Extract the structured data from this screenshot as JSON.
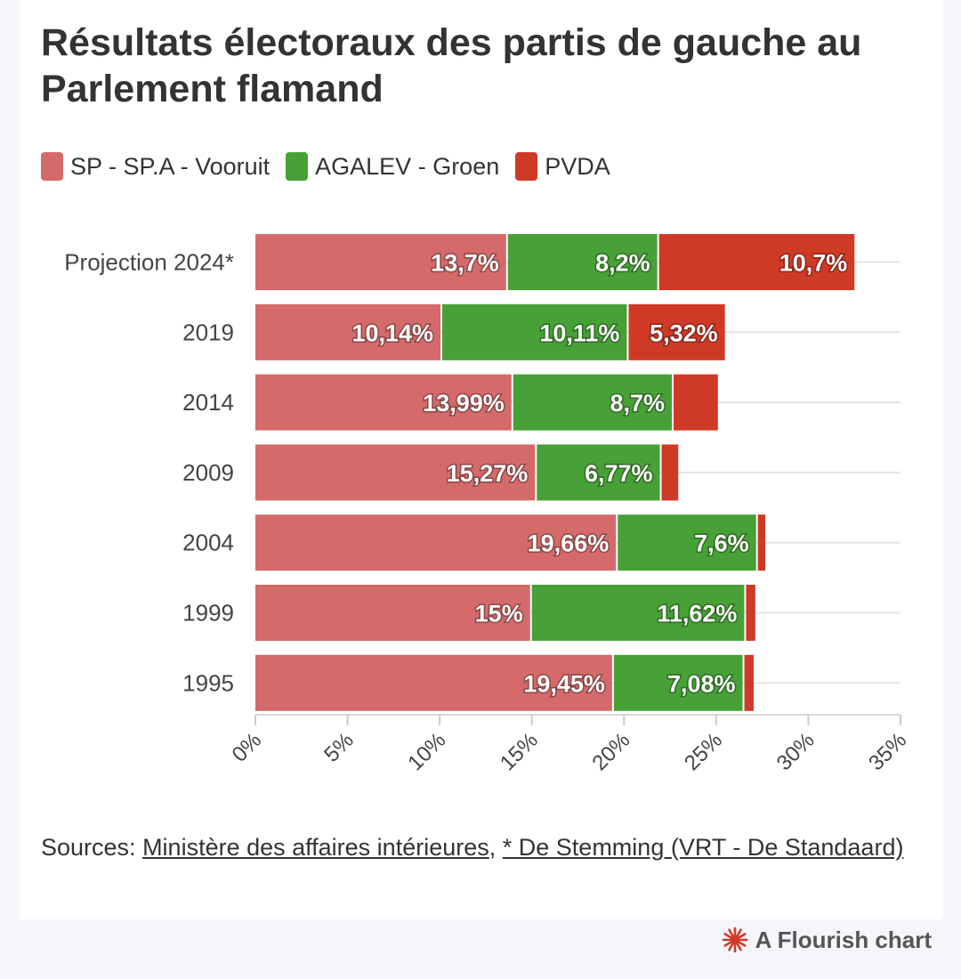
{
  "header": {
    "title": "Résultats électoraux des partis de gauche au Parlement flamand"
  },
  "legend": [
    {
      "label": "SP - SP.A - Vooruit",
      "color": "#d46a6a"
    },
    {
      "label": "AGALEV - Groen",
      "color": "#47a136"
    },
    {
      "label": "PVDA",
      "color": "#cf3a27"
    }
  ],
  "sources": {
    "prefix": "Sources: ",
    "link1": "Ministère des affaires intérieures",
    "sep": ", ",
    "link2": "* De Stemming (VRT - De Standaard)"
  },
  "footer": {
    "brand": "A Flourish chart",
    "icon": "flourish-logo-icon",
    "icon_color": "#cf3a27"
  },
  "chart_data": {
    "type": "bar",
    "orientation": "horizontal",
    "stacked": true,
    "title": "Résultats électoraux des partis de gauche au Parlement flamand",
    "categories": [
      "Projection 2024*",
      "2019",
      "2014",
      "2009",
      "2004",
      "1999",
      "1995"
    ],
    "series": [
      {
        "name": "SP - SP.A - Vooruit",
        "color": "#d46a6a",
        "values": [
          13.7,
          10.14,
          13.99,
          15.27,
          19.66,
          15,
          19.45
        ],
        "labels": [
          "13,7%",
          "10,14%",
          "13,99%",
          "15,27%",
          "19,66%",
          "15%",
          "19,45%"
        ]
      },
      {
        "name": "AGALEV - Groen",
        "color": "#47a136",
        "values": [
          8.2,
          10.11,
          8.7,
          6.77,
          7.6,
          11.62,
          7.08
        ],
        "labels": [
          "8,2%",
          "10,11%",
          "8,7%",
          "6,77%",
          "7,6%",
          "11,62%",
          "7,08%"
        ]
      },
      {
        "name": "PVDA",
        "color": "#cf3a27",
        "values": [
          10.7,
          5.32,
          2.5,
          1.0,
          0.5,
          0.6,
          0.6
        ],
        "labels": [
          "10,7%",
          "5,32%",
          "",
          "",
          "",
          "",
          ""
        ]
      }
    ],
    "xlim": [
      0,
      35
    ],
    "xticks": [
      0,
      5,
      10,
      15,
      20,
      25,
      30,
      35
    ],
    "xtick_labels": [
      "0%",
      "5%",
      "10%",
      "15%",
      "20%",
      "25%",
      "30%",
      "35%"
    ],
    "grid": true,
    "legend_position": "top-left"
  }
}
